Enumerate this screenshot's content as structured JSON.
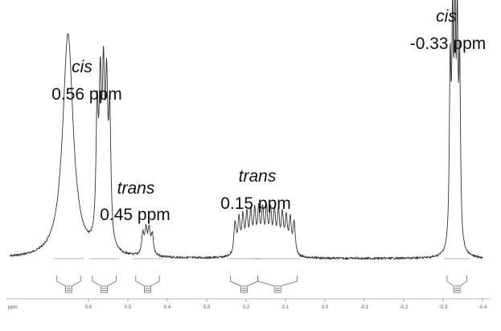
{
  "chart_data": {
    "type": "line",
    "xlabel": "ppm",
    "xlim": [
      0.8,
      -0.4
    ],
    "x_ticks": [
      "0.6",
      "0.5",
      "0.4",
      "0.3",
      "0.2",
      "0.1",
      "0.0",
      "-0.1",
      "-0.2",
      "-0.3",
      "-0.4"
    ],
    "grid": false,
    "series": [],
    "annotations": [
      {
        "form": "cis",
        "shift": "0.56 ppm",
        "x": 0.56
      },
      {
        "form": "trans",
        "shift": "0.45 ppm",
        "x": 0.45
      },
      {
        "form": "trans",
        "shift": "0.15 ppm",
        "x": 0.15
      },
      {
        "form": "cis",
        "shift": "-0.33 ppm",
        "x": -0.33
      }
    ],
    "peaks": [
      {
        "center": 0.652,
        "height": 0.93,
        "lines": [
          0.652
        ],
        "width": 0.016
      },
      {
        "center": 0.56,
        "height": 0.62,
        "lines": [
          0.578,
          0.57,
          0.562,
          0.554,
          0.546
        ],
        "width": 0.0035
      },
      {
        "center": 0.45,
        "height": 0.1,
        "lines": [
          0.462,
          0.454,
          0.446,
          0.438
        ],
        "width": 0.0035
      },
      {
        "center": 0.15,
        "height": 0.17,
        "lines": [
          0.228,
          0.218,
          0.208,
          0.198,
          0.188,
          0.178,
          0.168,
          0.158,
          0.148,
          0.138,
          0.128,
          0.118,
          0.108,
          0.098,
          0.088,
          0.078
        ],
        "width": 0.0035
      },
      {
        "center": -0.33,
        "height": 0.87,
        "lines": [
          -0.342,
          -0.336,
          -0.33,
          -0.324,
          -0.318
        ],
        "width": 0.0025
      }
    ],
    "integrals": [
      {
        "from": 0.68,
        "to": 0.62
      },
      {
        "from": 0.59,
        "to": 0.53
      },
      {
        "from": 0.48,
        "to": 0.42
      },
      {
        "from": 0.24,
        "to": 0.17
      },
      {
        "from": 0.17,
        "to": 0.07
      },
      {
        "from": -0.31,
        "to": -0.36
      }
    ]
  }
}
